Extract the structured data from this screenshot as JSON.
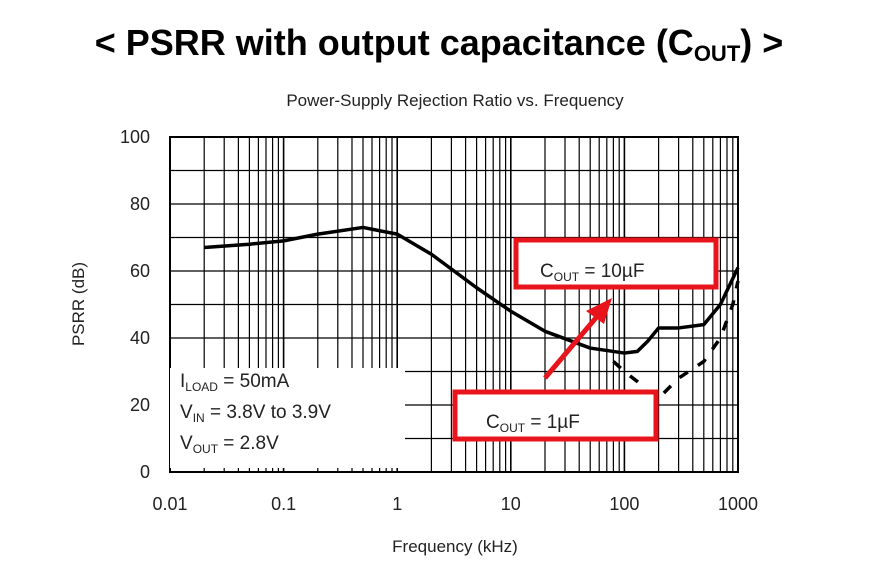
{
  "slide_title": {
    "prefix": "< PSRR with output capacitance (C",
    "sub": "OUT",
    "suffix": ") >"
  },
  "chart_data": {
    "type": "line",
    "title": "Power-Supply Rejection Ratio vs. Frequency",
    "xlabel": "Frequency (kHz)",
    "ylabel": "PSRR (dB)",
    "xscale": "log",
    "xlim": [
      0.01,
      1000
    ],
    "ylim": [
      0,
      100
    ],
    "xticks": [
      "0.01",
      "0.1",
      "1",
      "10",
      "100",
      "1000"
    ],
    "yticks": [
      "0",
      "20",
      "40",
      "60",
      "80",
      "100"
    ],
    "grid": true,
    "series": [
      {
        "name": "C_OUT = 10µF",
        "style": "solid",
        "x": [
          0.02,
          0.05,
          0.1,
          0.2,
          0.5,
          1,
          2,
          5,
          10,
          20,
          50,
          100,
          130,
          160,
          200,
          300,
          500,
          700,
          1000
        ],
        "y": [
          67,
          68,
          69,
          71,
          73,
          71,
          65,
          55,
          48,
          42,
          37,
          35.5,
          36,
          39,
          43,
          43,
          44,
          50,
          61
        ]
      },
      {
        "name": "C_OUT = 1µF",
        "style": "dashed",
        "x": [
          80,
          100,
          130,
          160,
          200,
          300,
          500,
          700,
          900,
          1000
        ],
        "y": [
          33,
          30,
          27,
          24,
          22,
          28,
          33,
          40,
          50,
          57
        ]
      }
    ],
    "conditions": [
      "I_LOAD = 50mA",
      "V_IN = 3.8V to 3.9V",
      "V_OUT = 2.8V"
    ],
    "annotations": [
      {
        "label": "C",
        "sub": "OUT",
        "rest": " = 10µF"
      },
      {
        "label": "C",
        "sub": "OUT",
        "rest": " = 1µF"
      }
    ],
    "colors": {
      "highlight": "#e8141c",
      "line": "#000000"
    }
  }
}
